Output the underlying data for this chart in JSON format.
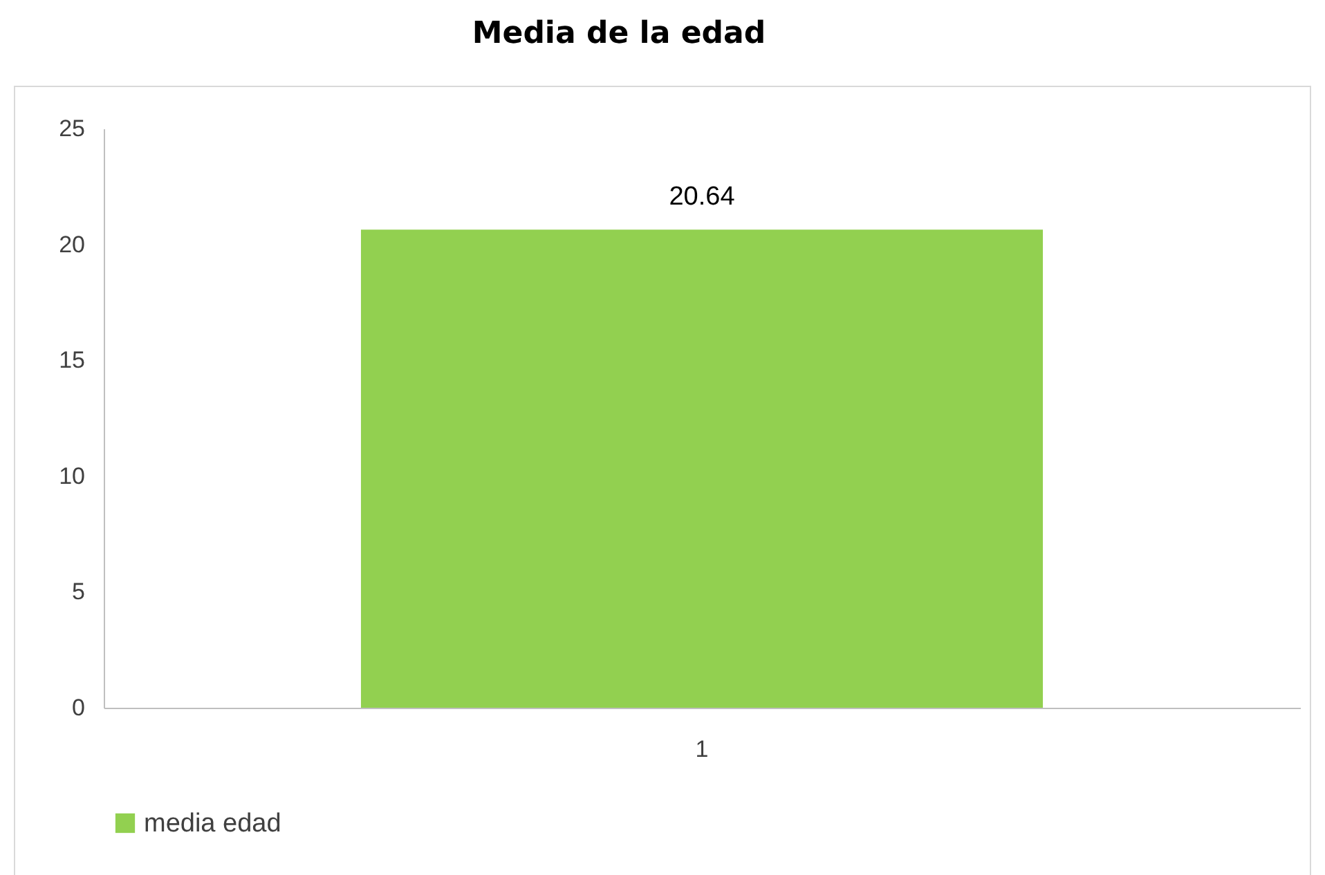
{
  "chart_data": {
    "type": "bar",
    "title": "Media de la edad",
    "categories": [
      "1"
    ],
    "series": [
      {
        "name": "media edad",
        "color": "#92d050",
        "values": [
          20.64
        ]
      }
    ],
    "ylim": [
      0,
      25
    ],
    "yticks": [
      0,
      5,
      10,
      15,
      20,
      25
    ],
    "grid": false,
    "legend": "bottom",
    "data_labels": true
  }
}
